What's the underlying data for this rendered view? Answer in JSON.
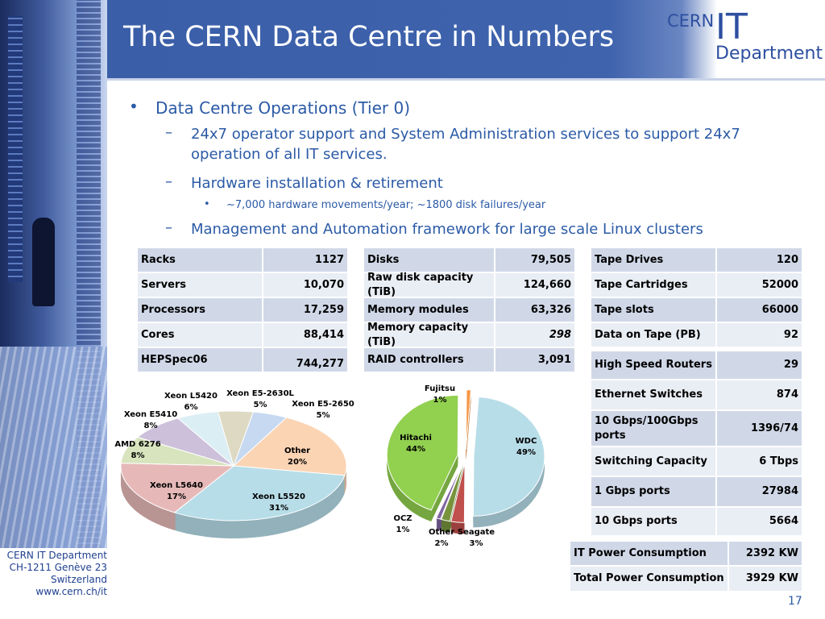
{
  "header": {
    "title": "The CERN Data Centre in Numbers",
    "logo": [
      "CERN",
      "IT",
      "Department"
    ]
  },
  "bullets": [
    {
      "level": 1,
      "text": "Data Centre Operations (Tier 0)"
    },
    {
      "level": 2,
      "text": "24x7 operator support and System Administration services to support 24x7 operation of all IT services."
    },
    {
      "level": 2,
      "text": "Hardware installation & retirement"
    },
    {
      "level": 3,
      "text": "~7,000 hardware movements/year; ~1800 disk failures/year"
    },
    {
      "level": 2,
      "text": "Management and Automation framework for large scale Linux clusters"
    }
  ],
  "tables": [
    {
      "rows": [
        [
          "Racks",
          "1127"
        ],
        [
          "Servers",
          "10,070"
        ],
        [
          "Processors",
          "17,259"
        ],
        [
          "Cores",
          "88,414"
        ],
        [
          "HEPSpec06",
          "744,277"
        ]
      ]
    },
    {
      "rows": [
        [
          "Disks",
          "79,505"
        ],
        [
          "Raw disk capacity (TiB)",
          "124,660"
        ],
        [
          "Memory modules",
          "63,326"
        ],
        [
          "Memory capacity (TiB)",
          "298"
        ],
        [
          "RAID controllers",
          "3,091"
        ]
      ]
    },
    {
      "rows": [
        [
          "Tape Drives",
          "120"
        ],
        [
          "Tape Cartridges",
          "52000"
        ],
        [
          "Tape slots",
          "66000"
        ],
        [
          "Data on Tape (PB)",
          "92"
        ]
      ]
    },
    {
      "rows": [
        [
          "High Speed Routers",
          "29"
        ],
        [
          "Ethernet Switches",
          "874"
        ],
        [
          "10 Gbps/100Gbps ports",
          "1396/74"
        ],
        [
          "Switching Capacity",
          "6 Tbps"
        ],
        [
          "1 Gbps ports",
          "27984"
        ],
        [
          "10 Gbps ports",
          "5664"
        ]
      ]
    },
    {
      "rows": [
        [
          "IT Power Consumption",
          "2392 KW"
        ],
        [
          "Total Power Consumption",
          "3929 KW"
        ]
      ]
    }
  ],
  "chart_data": [
    {
      "type": "pie",
      "categories": [
        "Xeon E5-2650",
        "Other",
        "Xeon L5520",
        "Xeon L5640",
        "AMD 6276",
        "Xeon E5410",
        "Xeon L5420",
        "Xeon E5-2630L"
      ],
      "values": [
        5,
        20,
        31,
        17,
        8,
        8,
        6,
        5
      ],
      "value_labels": [
        "5%",
        "20%",
        "31%",
        "17%",
        "8%",
        "8%",
        "6%",
        "5%"
      ],
      "colors": [
        "#c6d9f1",
        "#fbd4b4",
        "#b7dde8",
        "#e6b9b8",
        "#d7e4bd",
        "#ccc0da",
        "#dbeef4",
        "#ddd9c3"
      ]
    },
    {
      "type": "pie",
      "categories": [
        "WDC",
        "Seagate",
        "Other",
        "OCZ",
        "Hitachi",
        "Fujitsu"
      ],
      "values": [
        49,
        3,
        2,
        1,
        44,
        1
      ],
      "value_labels": [
        "49%",
        "3%",
        "2%",
        "1%",
        "44%",
        "1%"
      ],
      "colors": [
        "#b7dde8",
        "#c0504d",
        "#77933c",
        "#8064a2",
        "#92d050",
        "#f79646"
      ]
    }
  ],
  "footer": {
    "address": [
      "CERN IT Department",
      "CH-1211 Genève 23",
      "Switzerland",
      "www.cern.ch/it"
    ],
    "page": "17"
  }
}
